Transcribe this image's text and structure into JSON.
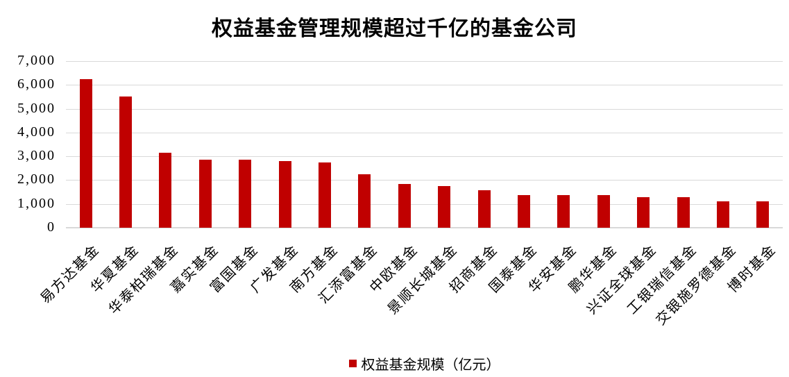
{
  "chart_data": {
    "type": "bar",
    "title": "权益基金管理规模超过千亿的基金公司",
    "legend": "权益基金规模（亿元）",
    "categories": [
      "易方达基金",
      "华夏基金",
      "华泰柏瑞基金",
      "嘉实基金",
      "富国基金",
      "广发基金",
      "南方基金",
      "汇添富基金",
      "中欧基金",
      "景顺长城基金",
      "招商基金",
      "国泰基金",
      "华安基金",
      "鹏华基金",
      "兴证全球基金",
      "工银瑞信基金",
      "交银施罗德基金",
      "博时基金"
    ],
    "values": [
      6250,
      5510,
      3140,
      2860,
      2860,
      2800,
      2730,
      2240,
      1850,
      1750,
      1570,
      1380,
      1370,
      1360,
      1290,
      1280,
      1120,
      1100
    ],
    "xlabel": "",
    "ylabel": "",
    "ylim": [
      0,
      7000
    ],
    "ytick_step": 1000,
    "grid": true,
    "legend_position": "bottom",
    "bar_color": "#c00000",
    "grid_color": "#d9d9d9",
    "text_color": "#000000"
  }
}
